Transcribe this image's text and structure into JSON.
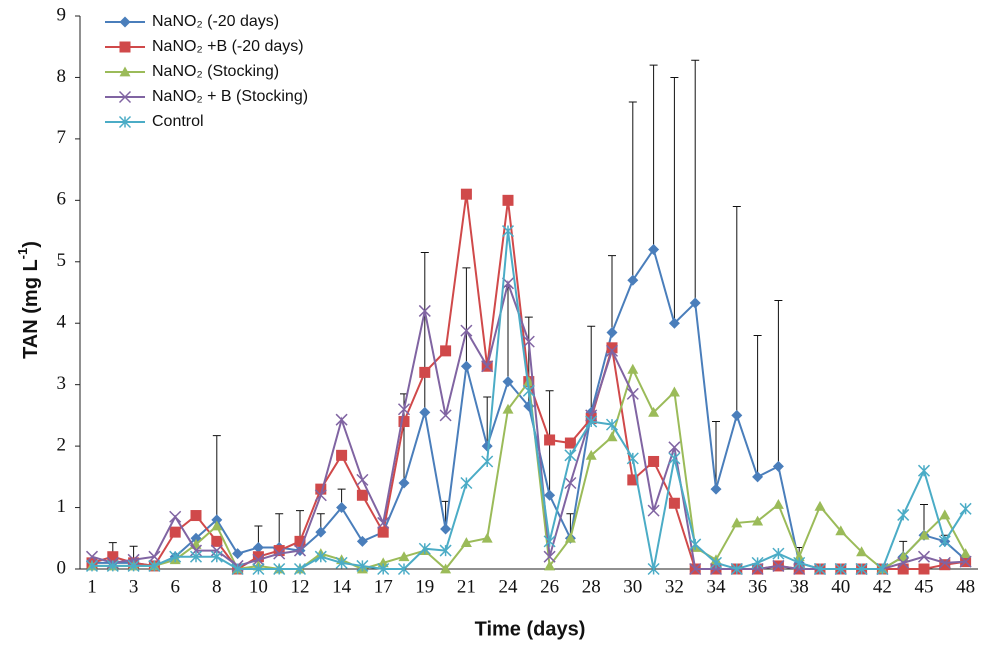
{
  "chart_data": {
    "type": "line",
    "x_label": "Time (days)",
    "y_label": {
      "main": "TAN (mg L",
      "sup": "-1",
      "end": ")"
    },
    "categories": [
      "1",
      null,
      "3",
      null,
      "6",
      null,
      "8",
      null,
      "10",
      null,
      "12",
      null,
      "14",
      null,
      "17",
      null,
      "19",
      null,
      "21",
      null,
      "24",
      null,
      "26",
      null,
      "28",
      null,
      "30",
      null,
      "32",
      null,
      "34",
      null,
      "36",
      null,
      "38",
      null,
      "40",
      null,
      "42",
      null,
      "45",
      null,
      "48"
    ],
    "ylim": [
      0,
      9
    ],
    "yticks": [
      0,
      1,
      2,
      3,
      4,
      5,
      6,
      7,
      8,
      9
    ],
    "series": [
      {
        "name": "NaNO₂ (-20 days)",
        "color": "#4a7ebb",
        "marker": "diamond",
        "values": [
          0.1,
          0.1,
          0.1,
          0.05,
          0.2,
          0.5,
          0.8,
          0.25,
          0.35,
          0.35,
          0.3,
          0.6,
          1.0,
          0.45,
          0.6,
          1.4,
          2.55,
          0.65,
          3.3,
          2.0,
          3.05,
          2.65,
          1.2,
          0.5,
          2.55,
          3.85,
          4.7,
          5.2,
          4.0,
          4.33,
          1.3,
          2.5,
          1.5,
          1.67,
          0.1,
          0,
          0,
          0,
          0,
          0.2,
          0.55,
          0.45,
          0.15
        ],
        "errors": [
          0,
          0.33,
          0.27,
          0,
          0,
          0,
          1.37,
          0,
          0.35,
          0.55,
          0.65,
          0.3,
          0.3,
          0,
          0,
          1.45,
          2.6,
          0.45,
          1.6,
          0.8,
          1.55,
          1.45,
          1.7,
          0.4,
          1.4,
          1.25,
          2.9,
          3.0,
          4.0,
          3.95,
          1.1,
          3.4,
          2.3,
          2.7,
          0.25,
          0,
          0,
          0,
          0,
          0.25,
          0.5,
          0.1,
          0
        ]
      },
      {
        "name": "NaNO₂ +B (-20 days)",
        "color": "#d0494a",
        "marker": "square",
        "values": [
          0.1,
          0.2,
          0.1,
          0.05,
          0.6,
          0.87,
          0.45,
          0,
          0.2,
          0.3,
          0.45,
          1.3,
          1.85,
          1.2,
          0.6,
          2.4,
          3.2,
          3.55,
          6.1,
          3.3,
          6.0,
          3.05,
          2.1,
          2.05,
          2.45,
          3.6,
          1.45,
          1.75,
          1.07,
          0,
          0,
          0,
          0,
          0.05,
          0,
          0,
          0,
          0,
          0,
          0,
          0,
          0.07,
          0.12
        ]
      },
      {
        "name": "NaNO₂ (Stocking)",
        "color": "#9bbb59",
        "marker": "triangle",
        "values": [
          0.05,
          0.05,
          0.05,
          0.05,
          0.15,
          0.4,
          0.7,
          0,
          0.05,
          0,
          0,
          0.25,
          0.15,
          0,
          0.1,
          0.2,
          0.3,
          0,
          0.43,
          0.5,
          2.6,
          3.05,
          0.05,
          0.5,
          1.85,
          2.15,
          3.25,
          2.55,
          2.88,
          0.35,
          0.15,
          0.75,
          0.78,
          1.05,
          0.2,
          1.02,
          0.62,
          0.28,
          0,
          0.2,
          0.55,
          0.88,
          0.25
        ]
      },
      {
        "name": "NaNO₂ + B (Stocking)",
        "color": "#8064a2",
        "marker": "x",
        "values": [
          0.2,
          0.1,
          0.15,
          0.2,
          0.85,
          0.3,
          0.3,
          0.05,
          0.15,
          0.25,
          0.3,
          1.2,
          2.43,
          1.45,
          0.75,
          2.6,
          4.2,
          2.5,
          3.88,
          3.3,
          4.65,
          3.7,
          0.2,
          1.4,
          2.5,
          3.55,
          2.85,
          0.95,
          1.98,
          0,
          0,
          0,
          0,
          0.05,
          0,
          0,
          0,
          0,
          0,
          0.1,
          0.2,
          0.1,
          0.12
        ]
      },
      {
        "name": "Control",
        "color": "#4bacc6",
        "marker": "star",
        "values": [
          0.05,
          0.05,
          0.05,
          0.05,
          0.2,
          0.2,
          0.2,
          0,
          0,
          0,
          0,
          0.2,
          0.1,
          0.05,
          0,
          0,
          0.33,
          0.3,
          1.4,
          1.75,
          5.5,
          2.9,
          0.45,
          1.85,
          2.4,
          2.35,
          1.8,
          0,
          1.8,
          0.4,
          0.1,
          0,
          0.1,
          0.25,
          0.1,
          0,
          0,
          0,
          0,
          0.88,
          1.6,
          0.45,
          0.98
        ]
      }
    ]
  }
}
